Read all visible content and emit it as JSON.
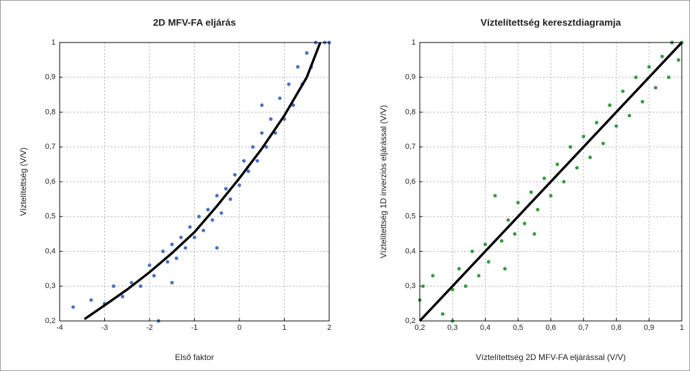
{
  "chart_data": [
    {
      "type": "scatter",
      "title": "2D MFV-FA eljárás",
      "xlabel": "Első faktor",
      "ylabel": "Víztelítettség (V/V)",
      "xlim": [
        -4,
        2
      ],
      "ylim": [
        0.2,
        1
      ],
      "grid": true,
      "xticks": [
        -4,
        -3,
        -2,
        -1,
        0,
        1,
        2
      ],
      "yticks": [
        {
          "value": 0.2,
          "label": "0,2"
        },
        {
          "value": 0.3,
          "label": "0,3"
        },
        {
          "value": 0.4,
          "label": "0,4"
        },
        {
          "value": 0.5,
          "label": "0,5"
        },
        {
          "value": 0.6,
          "label": "0,6"
        },
        {
          "value": 0.7,
          "label": "0,7"
        },
        {
          "value": 0.8,
          "label": "0,8"
        },
        {
          "value": 0.9,
          "label": "0,9"
        },
        1
      ],
      "series": [
        {
          "type": "scatter",
          "color": "#4a72c0",
          "x": [
            -3.7,
            -3.3,
            -3.0,
            -2.8,
            -2.6,
            -2.4,
            -2.2,
            -2.0,
            -1.9,
            -1.8,
            -1.7,
            -1.6,
            -1.5,
            -1.4,
            -1.3,
            -1.2,
            -1.1,
            -1.0,
            -0.9,
            -0.8,
            -0.7,
            -0.6,
            -0.5,
            -0.4,
            -0.3,
            -0.2,
            -0.1,
            0.0,
            0.1,
            0.2,
            0.3,
            0.4,
            0.5,
            0.6,
            0.7,
            0.8,
            0.9,
            1.0,
            1.1,
            1.2,
            1.3,
            1.4,
            1.5,
            1.6,
            1.7,
            1.9,
            2.0,
            -0.5,
            -1.5,
            0.5
          ],
          "values": [
            0.24,
            0.26,
            0.25,
            0.3,
            0.27,
            0.31,
            0.3,
            0.36,
            0.33,
            0.2,
            0.4,
            0.37,
            0.42,
            0.38,
            0.44,
            0.41,
            0.47,
            0.44,
            0.5,
            0.46,
            0.52,
            0.49,
            0.56,
            0.51,
            0.58,
            0.55,
            0.62,
            0.59,
            0.66,
            0.63,
            0.7,
            0.66,
            0.74,
            0.7,
            0.78,
            0.74,
            0.84,
            0.78,
            0.88,
            0.82,
            0.93,
            0.88,
            0.97,
            0.93,
            1.0,
            1.0,
            1.0,
            0.41,
            0.31,
            0.82
          ]
        },
        {
          "type": "line",
          "color": "#000000",
          "x": [
            -3.45,
            -3,
            -2.5,
            -2,
            -1.5,
            -1,
            -0.5,
            0,
            0.5,
            1,
            1.5,
            1.8
          ],
          "values": [
            0.205,
            0.245,
            0.29,
            0.34,
            0.395,
            0.455,
            0.53,
            0.61,
            0.695,
            0.79,
            0.9,
            1.0
          ]
        }
      ]
    },
    {
      "type": "scatter",
      "title": "Víztelítettség keresztdiagramja",
      "xlabel": "Víztelítettség 2D MFV-FA eljárással (V/V)",
      "ylabel": "Víztelítettség 1D inverziós eljárással (V/V)",
      "xlim": [
        0.2,
        1
      ],
      "ylim": [
        0.2,
        1
      ],
      "grid": true,
      "xticks": [
        {
          "value": 0.2,
          "label": "0,2"
        },
        {
          "value": 0.3,
          "label": "0,3"
        },
        {
          "value": 0.4,
          "label": "0,4"
        },
        {
          "value": 0.5,
          "label": "0,5"
        },
        {
          "value": 0.6,
          "label": "0,6"
        },
        {
          "value": 0.7,
          "label": "0,7"
        },
        {
          "value": 0.8,
          "label": "0,8"
        },
        {
          "value": 0.9,
          "label": "0,9"
        },
        1
      ],
      "yticks": [
        {
          "value": 0.2,
          "label": "0,2"
        },
        {
          "value": 0.3,
          "label": "0,3"
        },
        {
          "value": 0.4,
          "label": "0,4"
        },
        {
          "value": 0.5,
          "label": "0,5"
        },
        {
          "value": 0.6,
          "label": "0,6"
        },
        {
          "value": 0.7,
          "label": "0,7"
        },
        {
          "value": 0.8,
          "label": "0,8"
        },
        {
          "value": 0.9,
          "label": "0,9"
        },
        1
      ],
      "series": [
        {
          "type": "scatter",
          "color": "#3a9a45",
          "x": [
            0.2,
            0.21,
            0.24,
            0.27,
            0.3,
            0.32,
            0.34,
            0.36,
            0.38,
            0.4,
            0.41,
            0.43,
            0.45,
            0.47,
            0.49,
            0.5,
            0.52,
            0.54,
            0.56,
            0.58,
            0.6,
            0.62,
            0.64,
            0.66,
            0.68,
            0.7,
            0.72,
            0.74,
            0.76,
            0.78,
            0.8,
            0.82,
            0.84,
            0.86,
            0.88,
            0.9,
            0.92,
            0.94,
            0.96,
            0.97,
            0.99,
            1.0,
            0.3,
            0.46,
            0.55
          ],
          "values": [
            0.26,
            0.3,
            0.33,
            0.22,
            0.29,
            0.35,
            0.3,
            0.4,
            0.33,
            0.42,
            0.37,
            0.56,
            0.43,
            0.49,
            0.45,
            0.54,
            0.48,
            0.57,
            0.52,
            0.61,
            0.56,
            0.65,
            0.6,
            0.7,
            0.64,
            0.73,
            0.67,
            0.77,
            0.71,
            0.82,
            0.76,
            0.86,
            0.79,
            0.9,
            0.83,
            0.93,
            0.87,
            0.96,
            0.9,
            1.0,
            0.95,
            1.0,
            0.2,
            0.35,
            0.45
          ]
        },
        {
          "type": "line",
          "color": "#000000",
          "x": [
            0.2,
            1
          ],
          "values": [
            0.2,
            1
          ]
        }
      ]
    }
  ]
}
